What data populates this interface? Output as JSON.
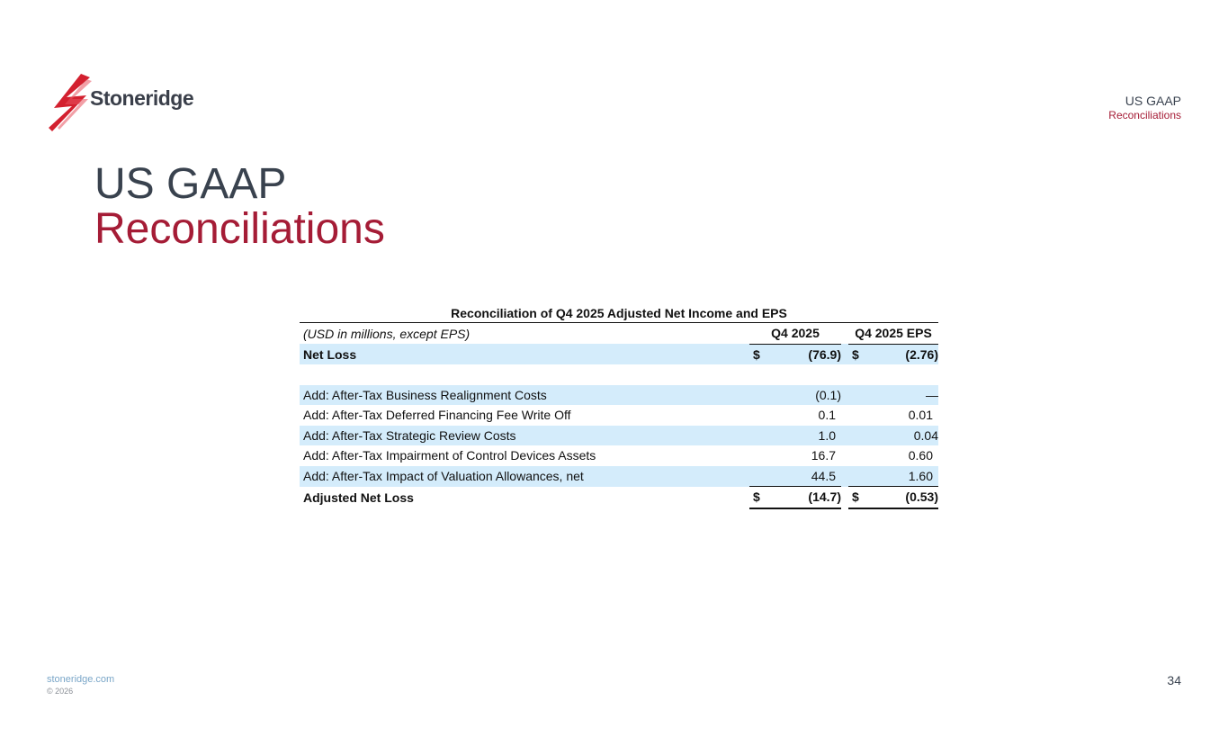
{
  "brand": {
    "name": "Stoneridge",
    "accent": "#a51c36",
    "dark": "#39424e"
  },
  "corner": {
    "title": "US GAAP",
    "subtitle": "Reconciliations"
  },
  "title": {
    "line1": "US GAAP",
    "line2": "Reconciliations"
  },
  "table": {
    "title": "Reconciliation of Q4 2025 Adjusted Net Income and EPS",
    "units_label": "(USD in millions, except EPS)",
    "columns": [
      "Q4 2025",
      "Q4 2025 EPS"
    ],
    "rows": [
      {
        "label": "Net Loss",
        "dollar1": "$",
        "v1": "(76.9)",
        "dollar2": "$",
        "v2": "(2.76)"
      },
      {
        "label": "Add: After-Tax Business Realignment Costs",
        "v1": "(0.1)",
        "v2": "—"
      },
      {
        "label": "Add: After-Tax Deferred Financing Fee Write Off",
        "v1": "0.1",
        "v2": "0.01"
      },
      {
        "label": "Add: After-Tax Strategic Review Costs",
        "v1": "1.0",
        "v2": "0.04"
      },
      {
        "label": "Add: After-Tax Impairment of Control Devices Assets",
        "v1": "16.7",
        "v2": "0.60"
      },
      {
        "label": "Add: After-Tax Impact of Valuation Allowances, net",
        "v1": "44.5",
        "v2": "1.60"
      },
      {
        "label": "Adjusted Net Loss",
        "dollar1": "$",
        "v1": "(14.7)",
        "dollar2": "$",
        "v2": "(0.53)"
      }
    ]
  },
  "footer": {
    "link": "stoneridge.com",
    "copyright": "© 2026",
    "page_number": "34"
  }
}
